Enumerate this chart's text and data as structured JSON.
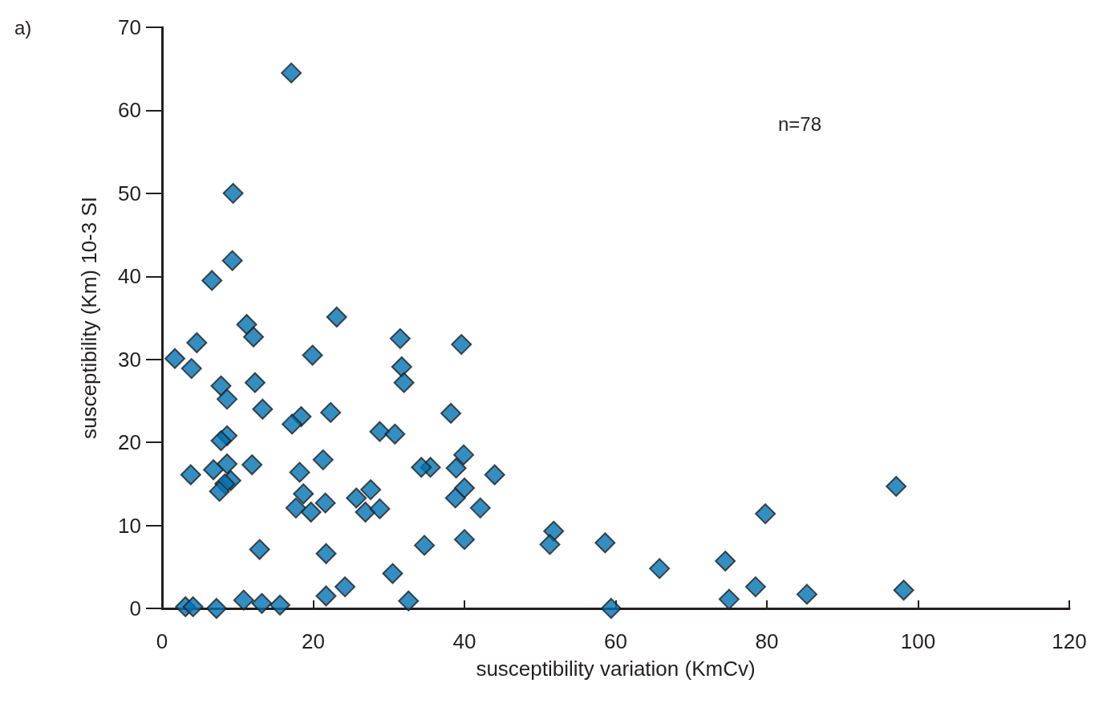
{
  "chart_data": {
    "type": "scatter",
    "xlabel": "susceptibility variation (KmCv)",
    "ylabel": "susceptibility (Km) 10-3 SI",
    "annotations": [
      "a)",
      "n=78"
    ],
    "x": [
      17.1,
      9.4,
      9.3,
      6.6,
      23.1,
      11.2,
      12.1,
      31.5,
      4.6,
      39.6,
      1.7,
      19.9,
      3.9,
      31.7,
      7.8,
      12.3,
      32.0,
      8.6,
      13.3,
      22.3,
      38.2,
      18.4,
      17.2,
      28.8,
      30.8,
      8.6,
      7.8,
      39.9,
      21.3,
      8.6,
      11.9,
      35.5,
      34.3,
      38.9,
      6.8,
      3.8,
      18.2,
      44.0,
      9.1,
      8.3,
      7.6,
      97.1,
      40.0,
      27.6,
      18.7,
      25.7,
      38.8,
      21.6,
      17.7,
      19.7,
      26.9,
      28.8,
      42.1,
      79.8,
      51.8,
      51.3,
      58.6,
      40.0,
      34.7,
      12.9,
      21.7,
      65.8,
      74.5,
      30.5,
      24.2,
      78.5,
      98.1,
      85.3,
      21.7,
      10.8,
      32.6,
      75.0,
      13.2,
      15.6,
      3.1,
      4.1,
      7.2,
      59.4
    ],
    "values": [
      64.5,
      50.0,
      41.9,
      39.5,
      35.1,
      34.2,
      32.7,
      32.5,
      32.0,
      31.8,
      30.1,
      30.5,
      28.9,
      29.1,
      26.8,
      27.2,
      27.2,
      25.2,
      24.0,
      23.6,
      23.5,
      23.1,
      22.2,
      21.3,
      21.0,
      20.8,
      20.2,
      18.5,
      17.9,
      17.4,
      17.3,
      17.0,
      17.0,
      16.9,
      16.7,
      16.1,
      16.4,
      16.1,
      15.4,
      15.0,
      14.1,
      14.7,
      14.5,
      14.3,
      13.8,
      13.3,
      13.3,
      12.7,
      12.1,
      11.6,
      11.6,
      12.0,
      12.1,
      11.4,
      9.3,
      7.7,
      7.9,
      8.3,
      7.6,
      7.1,
      6.6,
      4.8,
      5.7,
      4.2,
      2.6,
      2.6,
      2.2,
      1.7,
      1.5,
      1.0,
      0.9,
      1.1,
      0.6,
      0.4,
      0.2,
      0.2,
      0,
      0
    ],
    "color": "#0072b2",
    "marker": "diamond",
    "xlim": [
      0,
      120
    ],
    "xticks": [
      0,
      20,
      40,
      60,
      80,
      100,
      120
    ],
    "ylim": [
      0,
      70
    ],
    "yticks": [
      0,
      10,
      20,
      30,
      40,
      50,
      60,
      70
    ],
    "grid": false
  }
}
